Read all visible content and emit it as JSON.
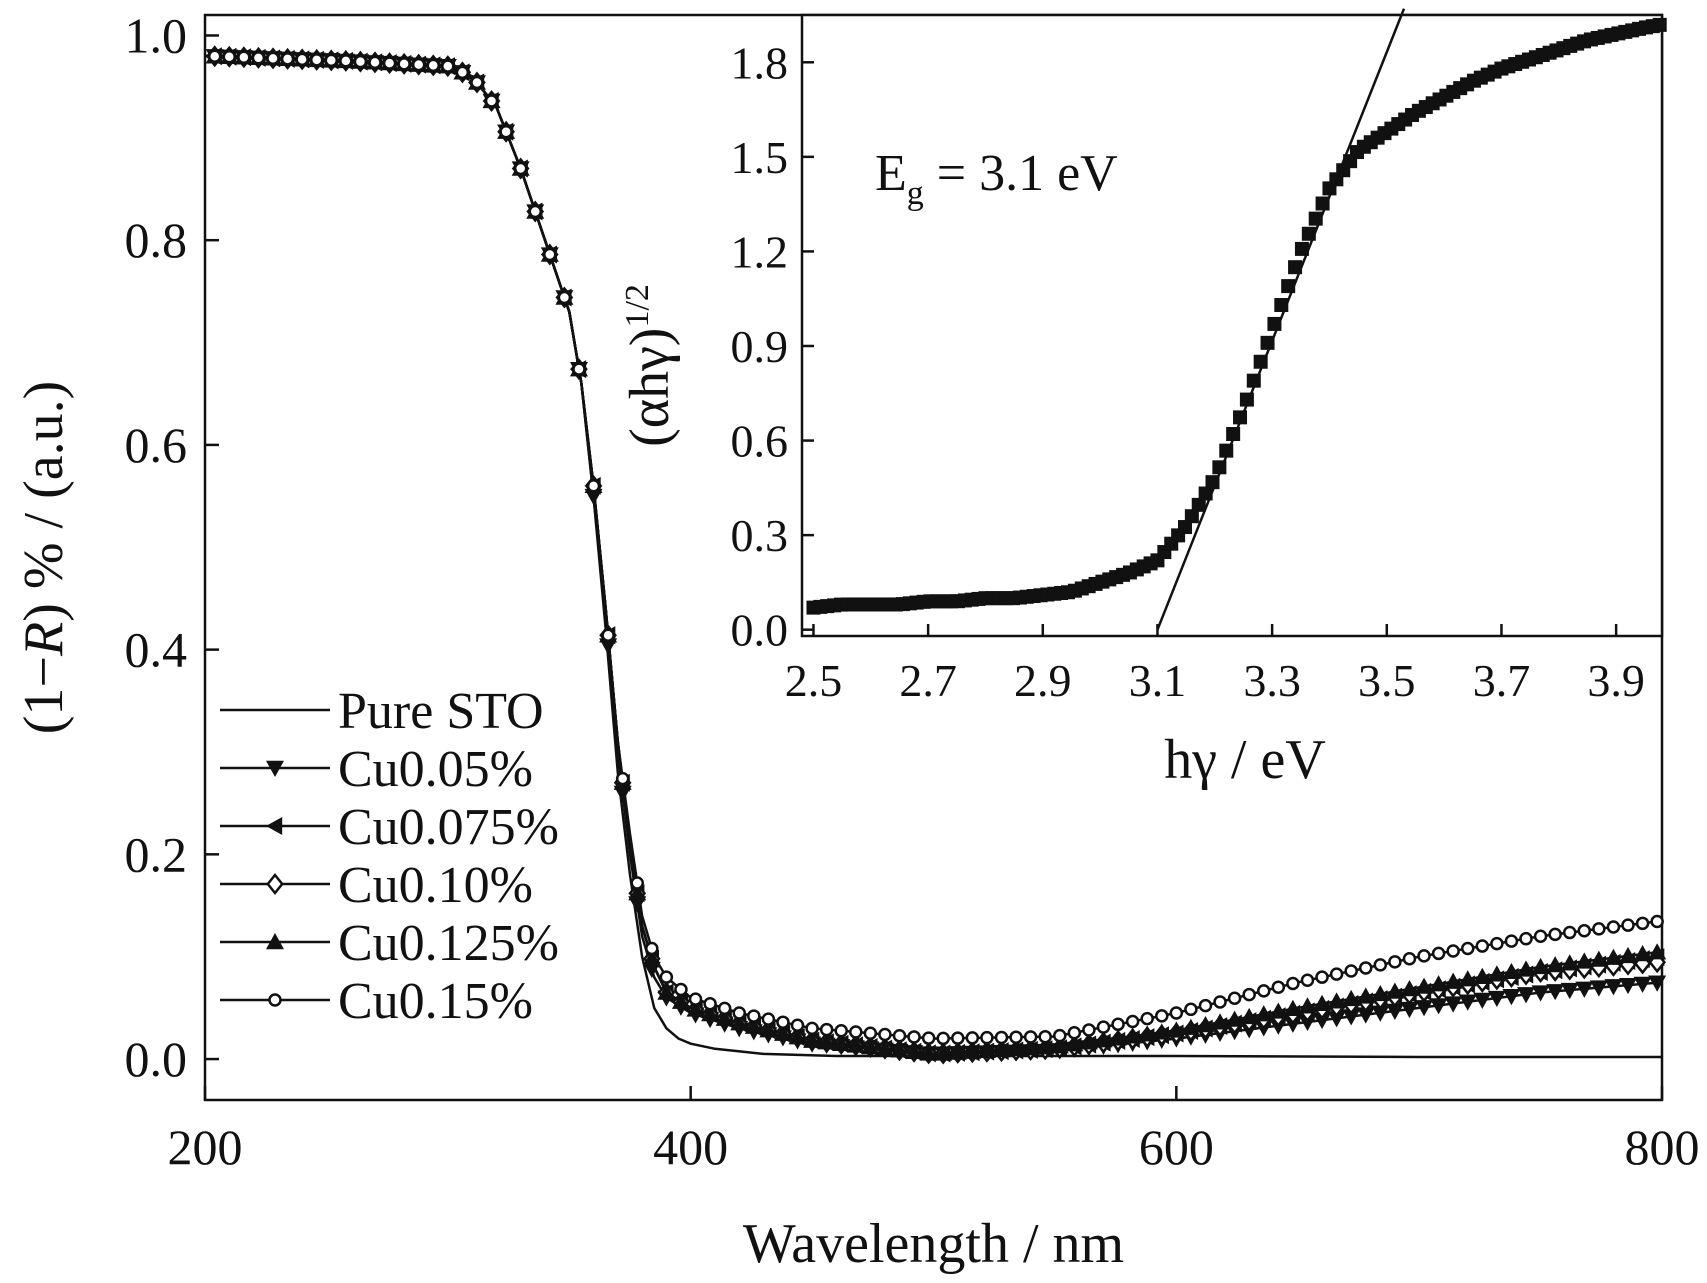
{
  "chart_data": [
    {
      "type": "line",
      "title": "",
      "xlabel": "Wavelength / nm",
      "ylabel_parts": [
        "(1−",
        "R",
        ") % / (a.u.)"
      ],
      "xlim": [
        200,
        800
      ],
      "ylim": [
        -0.04,
        1.02
      ],
      "xticks": [
        200,
        400,
        600,
        800
      ],
      "xtick_labels": [
        "200",
        "400",
        "600",
        "800"
      ],
      "yticks": [
        0.0,
        0.2,
        0.4,
        0.6,
        0.8,
        1.0
      ],
      "ytick_labels": [
        "0.0",
        "0.2",
        "0.4",
        "0.6",
        "0.8",
        "1.0"
      ],
      "grid": false,
      "legend_position": "lower-left",
      "series": [
        {
          "name": "Pure STO",
          "marker": "none",
          "x": [
            200,
            260,
            300,
            310,
            320,
            330,
            340,
            350,
            355,
            360,
            365,
            370,
            375,
            380,
            385,
            390,
            395,
            400,
            410,
            430,
            460,
            500,
            550,
            600,
            700,
            800
          ],
          "y": [
            0.98,
            0.975,
            0.97,
            0.96,
            0.93,
            0.87,
            0.8,
            0.73,
            0.66,
            0.55,
            0.42,
            0.28,
            0.18,
            0.1,
            0.05,
            0.03,
            0.02,
            0.015,
            0.01,
            0.005,
            0.003,
            0.003,
            0.003,
            0.003,
            0.002,
            0.002
          ]
        },
        {
          "name": "Cu0.05%",
          "marker": "tri-down",
          "x": [
            200,
            260,
            300,
            310,
            320,
            330,
            340,
            350,
            355,
            360,
            365,
            370,
            375,
            380,
            385,
            390,
            400,
            420,
            450,
            500,
            550,
            600,
            650,
            700,
            750,
            800
          ],
          "y": [
            0.98,
            0.975,
            0.97,
            0.96,
            0.93,
            0.87,
            0.8,
            0.73,
            0.66,
            0.55,
            0.43,
            0.3,
            0.2,
            0.12,
            0.08,
            0.06,
            0.045,
            0.03,
            0.015,
            0.005,
            0.008,
            0.02,
            0.035,
            0.05,
            0.065,
            0.075
          ]
        },
        {
          "name": "Cu0.075%",
          "marker": "tri-left",
          "x": [
            200,
            260,
            300,
            310,
            320,
            330,
            340,
            350,
            355,
            360,
            365,
            370,
            375,
            380,
            385,
            390,
            400,
            420,
            450,
            500,
            550,
            600,
            650,
            700,
            750,
            800
          ],
          "y": [
            0.98,
            0.975,
            0.97,
            0.96,
            0.93,
            0.87,
            0.8,
            0.73,
            0.66,
            0.56,
            0.44,
            0.31,
            0.21,
            0.13,
            0.09,
            0.065,
            0.05,
            0.035,
            0.018,
            0.005,
            0.01,
            0.025,
            0.045,
            0.065,
            0.085,
            0.1
          ]
        },
        {
          "name": "Cu0.10%",
          "marker": "diamond",
          "x": [
            200,
            260,
            300,
            310,
            320,
            330,
            340,
            350,
            355,
            360,
            365,
            370,
            375,
            380,
            385,
            390,
            400,
            420,
            450,
            500,
            550,
            600,
            650,
            700,
            750,
            800
          ],
          "y": [
            0.98,
            0.975,
            0.97,
            0.96,
            0.93,
            0.87,
            0.8,
            0.73,
            0.66,
            0.56,
            0.44,
            0.31,
            0.21,
            0.13,
            0.09,
            0.065,
            0.05,
            0.035,
            0.018,
            0.005,
            0.01,
            0.025,
            0.045,
            0.065,
            0.085,
            0.095
          ]
        },
        {
          "name": "Cu0.125%",
          "marker": "tri-up",
          "x": [
            200,
            260,
            300,
            310,
            320,
            330,
            340,
            350,
            355,
            360,
            365,
            370,
            375,
            380,
            385,
            390,
            400,
            420,
            450,
            500,
            550,
            600,
            650,
            700,
            750,
            800
          ],
          "y": [
            0.98,
            0.975,
            0.97,
            0.96,
            0.93,
            0.87,
            0.8,
            0.73,
            0.66,
            0.56,
            0.44,
            0.31,
            0.21,
            0.13,
            0.09,
            0.065,
            0.05,
            0.035,
            0.018,
            0.005,
            0.012,
            0.028,
            0.05,
            0.07,
            0.09,
            0.105
          ]
        },
        {
          "name": "Cu0.15%",
          "marker": "circle",
          "x": [
            200,
            260,
            300,
            310,
            320,
            330,
            340,
            350,
            355,
            360,
            365,
            370,
            375,
            380,
            385,
            390,
            400,
            420,
            450,
            500,
            550,
            600,
            650,
            700,
            750,
            800
          ],
          "y": [
            0.98,
            0.975,
            0.97,
            0.96,
            0.93,
            0.87,
            0.8,
            0.73,
            0.66,
            0.56,
            0.44,
            0.31,
            0.22,
            0.14,
            0.1,
            0.08,
            0.06,
            0.045,
            0.03,
            0.02,
            0.022,
            0.045,
            0.075,
            0.1,
            0.12,
            0.135
          ]
        }
      ]
    },
    {
      "type": "scatter",
      "title": "",
      "xlabel": "hγ / eV",
      "ylabel_base": "(αhγ)",
      "ylabel_sup": "1/2",
      "xlim": [
        2.48,
        3.98
      ],
      "ylim": [
        -0.02,
        1.95
      ],
      "xticks": [
        2.5,
        2.7,
        2.9,
        3.1,
        3.3,
        3.5,
        3.7,
        3.9
      ],
      "xtick_labels": [
        "2.5",
        "2.7",
        "2.9",
        "3.1",
        "3.3",
        "3.5",
        "3.7",
        "3.9"
      ],
      "yticks": [
        0.0,
        0.3,
        0.6,
        0.9,
        1.2,
        1.5,
        1.8
      ],
      "ytick_labels": [
        "0.0",
        "0.3",
        "0.6",
        "0.9",
        "1.2",
        "1.5",
        "1.8"
      ],
      "grid": false,
      "annotation": {
        "base": "E",
        "sub": "g",
        "rest": " = 3.1 eV"
      },
      "fit_line": {
        "x": [
          3.1,
          3.53
        ],
        "y": [
          0.0,
          1.97
        ]
      },
      "points_x": [
        2.5,
        2.55,
        2.6,
        2.65,
        2.7,
        2.75,
        2.8,
        2.85,
        2.9,
        2.95,
        3.0,
        3.05,
        3.1,
        3.15,
        3.2,
        3.25,
        3.3,
        3.35,
        3.4,
        3.45,
        3.5,
        3.55,
        3.6,
        3.65,
        3.7,
        3.75,
        3.8,
        3.85,
        3.9,
        3.95,
        3.98
      ],
      "points_y": [
        0.07,
        0.08,
        0.08,
        0.08,
        0.09,
        0.09,
        0.1,
        0.1,
        0.11,
        0.12,
        0.15,
        0.18,
        0.22,
        0.33,
        0.48,
        0.7,
        0.95,
        1.2,
        1.4,
        1.52,
        1.58,
        1.64,
        1.69,
        1.74,
        1.78,
        1.81,
        1.84,
        1.87,
        1.89,
        1.91,
        1.92
      ]
    }
  ]
}
